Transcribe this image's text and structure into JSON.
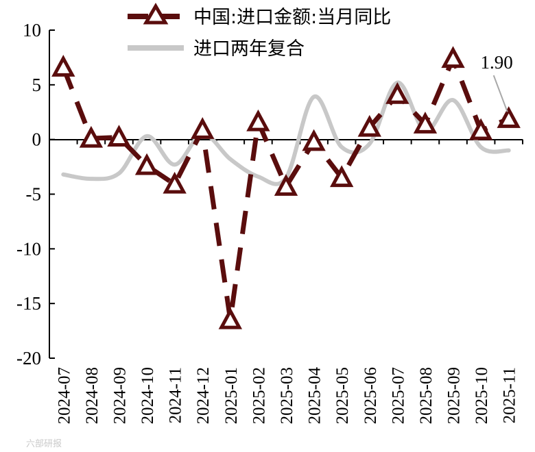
{
  "chart_data": {
    "type": "line",
    "categories": [
      "2024-07",
      "2024-08",
      "2024-09",
      "2024-10",
      "2024-11",
      "2024-12",
      "2025-01",
      "2025-02",
      "2025-03",
      "2025-04",
      "2025-05",
      "2025-06",
      "2025-07",
      "2025-08",
      "2025-09",
      "2025-10",
      "2025-11"
    ],
    "series": [
      {
        "name": "中国:进口金额:当月同比",
        "style": "dashed-with-triangles",
        "color": "#5a0d0d",
        "values": [
          6.6,
          0.1,
          0.2,
          -2.4,
          -4.1,
          0.9,
          -16.5,
          1.6,
          -4.3,
          -0.2,
          -3.5,
          1.1,
          4.1,
          1.4,
          7.4,
          0.8,
          1.9
        ]
      },
      {
        "name": "进口两年复合",
        "style": "smooth",
        "color": "#c8c8c8",
        "values": [
          -3.2,
          -3.6,
          -3.1,
          0.3,
          -2.3,
          0.5,
          -1.8,
          -3.4,
          -3.5,
          3.9,
          -0.7,
          -0.4,
          5.2,
          0.8,
          3.6,
          -0.7,
          -1.0
        ]
      }
    ],
    "yticks": [
      "10",
      "5",
      "0",
      "-5",
      "-10",
      "-15",
      "-20"
    ],
    "ylim": [
      -20,
      10
    ],
    "annotation": {
      "text": "1.90",
      "series_index": 0,
      "category": "2025-11"
    },
    "legend_position": "top",
    "grid": false
  },
  "watermark": "六部研报"
}
